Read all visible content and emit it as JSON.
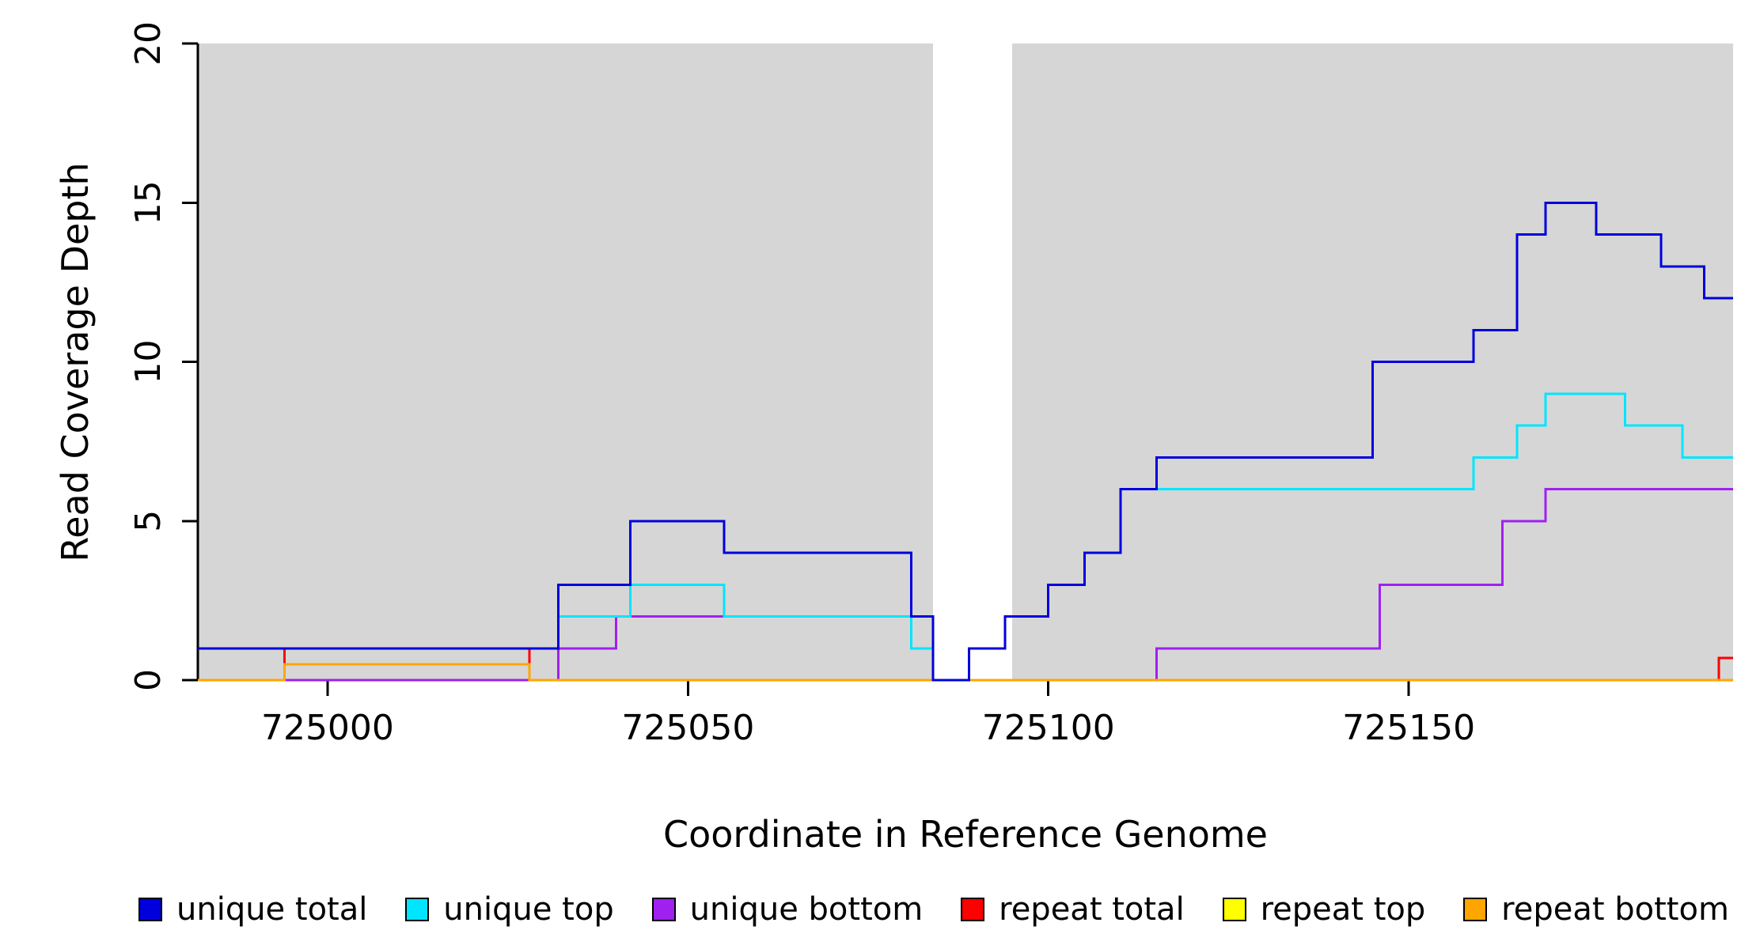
{
  "chart_data": {
    "type": "line",
    "subtype": "step",
    "title": "",
    "xlabel": "Coordinate in Reference Genome",
    "ylabel": "Read Coverage Depth",
    "xlim": [
      724982,
      725195
    ],
    "ylim": [
      0,
      20
    ],
    "x_ticks": [
      725000,
      725050,
      725100,
      725150
    ],
    "y_ticks": [
      0,
      5,
      10,
      15,
      20
    ],
    "grid": false,
    "legend_position": "bottom",
    "background_color": "#ffffff",
    "shaded_region_color": "#d6d6d6",
    "background_regions": [
      {
        "x1": 724982,
        "x2": 725084
      },
      {
        "x1": 725095,
        "x2": 725195
      }
    ],
    "series": [
      {
        "name": "repeat top",
        "color": "#ffff00",
        "steps": [
          [
            724982,
            0
          ]
        ]
      },
      {
        "name": "unique bottom",
        "color": "#a020f0",
        "steps": [
          [
            724982,
            0
          ],
          [
            725032,
            1
          ],
          [
            725040,
            2
          ],
          [
            725081,
            1
          ],
          [
            725084,
            0
          ],
          [
            725115,
            1
          ],
          [
            725146,
            3
          ],
          [
            725163,
            5
          ],
          [
            725169,
            6
          ]
        ]
      },
      {
        "name": "repeat total",
        "color": "#ff0000",
        "steps": [
          [
            724982,
            0
          ],
          [
            724994,
            1
          ],
          [
            725028,
            0
          ],
          [
            725193,
            0.7
          ]
        ]
      },
      {
        "name": "repeat bottom",
        "color": "#ffa500",
        "steps": [
          [
            724982,
            0
          ],
          [
            724994,
            0.5
          ],
          [
            725028,
            0
          ]
        ]
      },
      {
        "name": "unique top",
        "color": "#00e5ff",
        "steps": [
          [
            724982,
            1
          ],
          [
            725032,
            2
          ],
          [
            725042,
            3
          ],
          [
            725055,
            2
          ],
          [
            725081,
            1
          ],
          [
            725084,
            0
          ],
          [
            725089,
            1
          ],
          [
            725094,
            2
          ],
          [
            725100,
            3
          ],
          [
            725105,
            4
          ],
          [
            725110,
            6
          ],
          [
            725159,
            7
          ],
          [
            725165,
            8
          ],
          [
            725169,
            9
          ],
          [
            725180,
            8
          ],
          [
            725188,
            7
          ]
        ]
      },
      {
        "name": "unique total",
        "color": "#0000dd",
        "steps": [
          [
            724982,
            1
          ],
          [
            725032,
            3
          ],
          [
            725042,
            5
          ],
          [
            725055,
            4
          ],
          [
            725081,
            2
          ],
          [
            725084,
            0
          ],
          [
            725089,
            1
          ],
          [
            725094,
            2
          ],
          [
            725100,
            3
          ],
          [
            725105,
            4
          ],
          [
            725110,
            6
          ],
          [
            725115,
            7
          ],
          [
            725145,
            10
          ],
          [
            725159,
            11
          ],
          [
            725165,
            14
          ],
          [
            725169,
            15
          ],
          [
            725176,
            14
          ],
          [
            725185,
            13
          ],
          [
            725191,
            12
          ]
        ]
      }
    ],
    "legend": [
      {
        "label": "unique total",
        "color": "#0000dd"
      },
      {
        "label": "unique top",
        "color": "#00e5ff"
      },
      {
        "label": "unique bottom",
        "color": "#a020f0"
      },
      {
        "label": "repeat total",
        "color": "#ff0000"
      },
      {
        "label": "repeat top",
        "color": "#ffff00"
      },
      {
        "label": "repeat bottom",
        "color": "#ffa500"
      }
    ]
  }
}
